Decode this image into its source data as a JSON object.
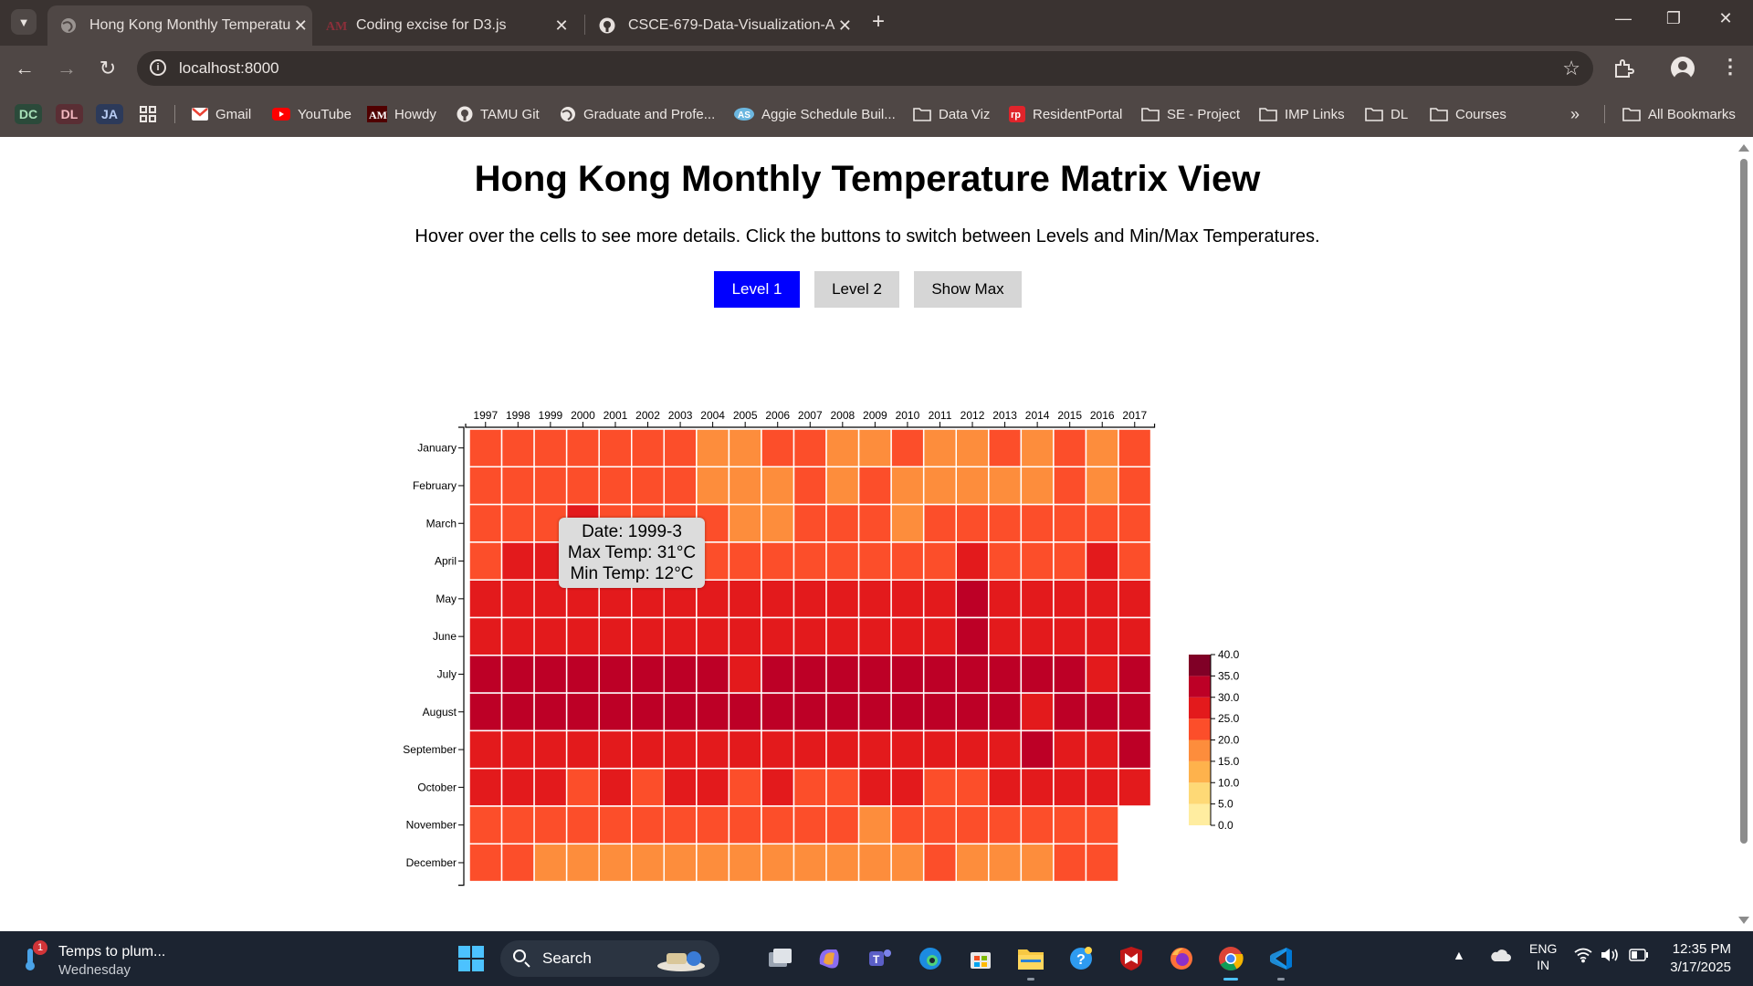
{
  "browser": {
    "tabs": [
      {
        "title": "Hong Kong Monthly Temperatu",
        "active": true
      },
      {
        "title": "Coding excise for D3.js",
        "active": false
      },
      {
        "title": "CSCE-679-Data-Visualization-A",
        "active": false
      }
    ],
    "url": "localhost:8000",
    "bookmarks": [
      {
        "label": "Gmail",
        "icon": "gmail-icon"
      },
      {
        "label": "YouTube",
        "icon": "youtube-icon"
      },
      {
        "label": "Howdy",
        "icon": "tamu-icon"
      },
      {
        "label": "TAMU Git",
        "icon": "github-icon"
      },
      {
        "label": "Graduate and Profe...",
        "icon": "globe-icon"
      },
      {
        "label": "Aggie Schedule Buil...",
        "icon": "aggie-icon"
      },
      {
        "label": "Data Viz",
        "icon": "folder-icon"
      },
      {
        "label": "ResidentPortal",
        "icon": "rp-icon"
      },
      {
        "label": "SE - Project",
        "icon": "folder-icon"
      },
      {
        "label": "IMP Links",
        "icon": "folder-icon"
      },
      {
        "label": "DL",
        "icon": "folder-icon"
      },
      {
        "label": "Courses",
        "icon": "folder-icon"
      }
    ],
    "profile_badges": [
      {
        "label": "DC",
        "bg": "#2b4a3a",
        "fg": "#a8e0b8"
      },
      {
        "label": "DL",
        "bg": "#5a2e34",
        "fg": "#f3b8c0"
      },
      {
        "label": "JA",
        "bg": "#2c3a5a",
        "fg": "#b8ccf3"
      }
    ],
    "all_bookmarks": "All Bookmarks"
  },
  "page": {
    "title": "Hong Kong Monthly Temperature Matrix View",
    "subtitle": "Hover over the cells to see more details. Click the buttons to switch between Levels and Min/Max Temperatures.",
    "buttons": {
      "level1": "Level 1",
      "level2": "Level 2",
      "show_max": "Show Max"
    },
    "tooltip": {
      "date": "Date: 1999-3",
      "max": "Max Temp: 31°C",
      "min": "Min Temp: 12°C"
    }
  },
  "chart_data": {
    "type": "heatmap",
    "title": "",
    "xlabel": "",
    "ylabel": "",
    "years": [
      "1997",
      "1998",
      "1999",
      "2000",
      "2001",
      "2002",
      "2003",
      "2004",
      "2005",
      "2006",
      "2007",
      "2008",
      "2009",
      "2010",
      "2011",
      "2012",
      "2013",
      "2014",
      "2015",
      "2016",
      "2017"
    ],
    "months": [
      "January",
      "February",
      "March",
      "April",
      "May",
      "June",
      "July",
      "August",
      "September",
      "October",
      "November",
      "December"
    ],
    "legend": {
      "ticks": [
        "0.0",
        "5.0",
        "10.0",
        "15.0",
        "20.0",
        "25.0",
        "30.0",
        "35.0",
        "40.0"
      ],
      "domain": [
        0,
        40
      ]
    },
    "values": [
      [
        20,
        20,
        20,
        20,
        21,
        20,
        20,
        19,
        19,
        20,
        20,
        19,
        19,
        20,
        19,
        19,
        20,
        19,
        21,
        16,
        23
      ],
      [
        20,
        20,
        22,
        20,
        21,
        20,
        22,
        19,
        19,
        19,
        20,
        18,
        24,
        19,
        19,
        19,
        19,
        17,
        20,
        19,
        20
      ],
      [
        22,
        22,
        22,
        25,
        21,
        22,
        22,
        20,
        19,
        19,
        21,
        22,
        22,
        19,
        21,
        21,
        21,
        22,
        22,
        20,
        22
      ],
      [
        24,
        26,
        26,
        25,
        25,
        25,
        24,
        23,
        22,
        23,
        22,
        23,
        23,
        23,
        24,
        25,
        24,
        23,
        24,
        25,
        24
      ],
      [
        27,
        27,
        26,
        28,
        28,
        27,
        27,
        26,
        25,
        27,
        27,
        27,
        27,
        27,
        28,
        30,
        28,
        27,
        28,
        27,
        28
      ],
      [
        28,
        28,
        29,
        29,
        29,
        29,
        29,
        29,
        28,
        29,
        29,
        29,
        29,
        28,
        29,
        30,
        29,
        29,
        29,
        29,
        29
      ],
      [
        30,
        30,
        31,
        30,
        30,
        30,
        32,
        30,
        29,
        30,
        30,
        30,
        30,
        30,
        31,
        31,
        30,
        30,
        30,
        29,
        30
      ],
      [
        30,
        30,
        30,
        30,
        30,
        30,
        30,
        30,
        30,
        30,
        30,
        30,
        30,
        30,
        30,
        30,
        30,
        29,
        30,
        30,
        30
      ],
      [
        26,
        28,
        29,
        29,
        28,
        28,
        28,
        28,
        29,
        26,
        29,
        29,
        29,
        28,
        28,
        29,
        29,
        30,
        29,
        28,
        30
      ],
      [
        25,
        26,
        25,
        24,
        25,
        24,
        25,
        25,
        24,
        28,
        24,
        23,
        28,
        28,
        24,
        24,
        25,
        26,
        27,
        25,
        26
      ],
      [
        22,
        23,
        20,
        21,
        21,
        22,
        20,
        21,
        22,
        20,
        20,
        20,
        18,
        24,
        22,
        20,
        21,
        21,
        20,
        20,
        null
      ],
      [
        20,
        21,
        16,
        18,
        18,
        17,
        18,
        16,
        18,
        19,
        19,
        19,
        19,
        17,
        20,
        18,
        19,
        19,
        20,
        20,
        null
      ]
    ]
  },
  "taskbar": {
    "weather_title": "Temps to plum...",
    "weather_day": "Wednesday",
    "weather_badge": "1",
    "search_label": "Search",
    "lang1": "ENG",
    "lang2": "IN",
    "time": "12:35 PM",
    "date": "3/17/2025"
  }
}
